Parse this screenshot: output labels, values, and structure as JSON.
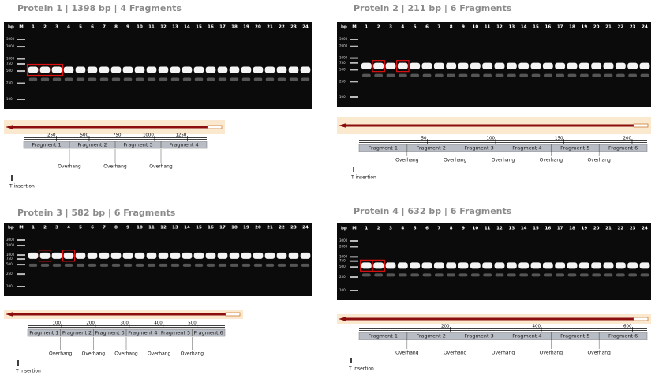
{
  "panels": [
    {
      "title": "Protein 1 | 1398 bp | 4 Fragments",
      "axis_label": "bp",
      "lanes": [
        "M",
        "1",
        "2",
        "3",
        "4",
        "5",
        "6",
        "7",
        "8",
        "9",
        "10",
        "11",
        "12",
        "13",
        "14",
        "15",
        "16",
        "17",
        "18",
        "19",
        "20",
        "21",
        "22",
        "23",
        "24"
      ],
      "ladder": [
        3000,
        2000,
        1000,
        750,
        500,
        250,
        100
      ],
      "highlighted": [
        1,
        2,
        3
      ],
      "xlim": [
        0,
        1398
      ],
      "xticks": [
        250,
        500,
        750,
        1000,
        1250
      ],
      "fragments": [
        "Fragment 1",
        "Fragment 2",
        "Fragment 3",
        "Fragment 4"
      ],
      "overhangs": [
        "Overhang",
        "Overhang",
        "Overhang"
      ],
      "insertion": "T insertion"
    },
    {
      "title": "Protein 2 | 211 bp | 6 Fragments",
      "axis_label": "bp",
      "lanes": [
        "M",
        "1",
        "2",
        "3",
        "4",
        "5",
        "6",
        "7",
        "8",
        "9",
        "10",
        "11",
        "12",
        "13",
        "14",
        "15",
        "16",
        "17",
        "18",
        "19",
        "20",
        "21",
        "22",
        "23",
        "24"
      ],
      "ladder": [
        3000,
        2000,
        1000,
        750,
        500,
        250,
        100
      ],
      "highlighted": [
        2,
        4
      ],
      "xlim": [
        0,
        211
      ],
      "xticks": [
        50,
        100,
        150,
        200
      ],
      "fragments": [
        "Fragment 1",
        "Fragment 2",
        "Fragment 3",
        "Fragment 4",
        "Fragment 5",
        "Fragment 6"
      ],
      "overhangs": [
        "Overhang",
        "Overhang",
        "Overhang",
        "Overhang",
        "Overhang"
      ],
      "insertion": "T insertion"
    },
    {
      "title": "Protein 3 | 582 bp | 6 Fragments",
      "axis_label": "bp",
      "lanes": [
        "M",
        "1",
        "2",
        "3",
        "4",
        "5",
        "6",
        "7",
        "8",
        "9",
        "10",
        "11",
        "12",
        "13",
        "14",
        "15",
        "16",
        "17",
        "18",
        "19",
        "20",
        "21",
        "22",
        "23",
        "24"
      ],
      "ladder": [
        3000,
        2000,
        1000,
        750,
        500,
        250,
        100
      ],
      "highlighted": [
        2,
        4
      ],
      "xlim": [
        0,
        582
      ],
      "xticks": [
        100,
        200,
        300,
        400,
        500
      ],
      "fragments": [
        "Fragment 1",
        "Fragment 2",
        "Fragment 3",
        "Fragment 4",
        "Fragment 5",
        "Fragment 6"
      ],
      "overhangs": [
        "Overhang",
        "Overhang",
        "Overhang",
        "Overhang",
        "Overhang"
      ],
      "insertion": "T insertion"
    },
    {
      "title": "Protein 4 | 632 bp | 6 Fragments",
      "axis_label": "bp",
      "lanes": [
        "M",
        "1",
        "2",
        "3",
        "4",
        "5",
        "6",
        "7",
        "8",
        "9",
        "10",
        "11",
        "12",
        "13",
        "14",
        "15",
        "16",
        "17",
        "18",
        "19",
        "20",
        "21",
        "22",
        "23",
        "24"
      ],
      "ladder": [
        3000,
        2000,
        1000,
        750,
        500,
        250,
        100
      ],
      "highlighted": [
        1,
        2
      ],
      "xlim": [
        0,
        632
      ],
      "xticks": [
        200,
        400,
        600
      ],
      "fragments": [
        "Fragment 1",
        "Fragment 2",
        "Fragment 3",
        "Fragment 4",
        "Fragment 5",
        "Fragment 6"
      ],
      "overhangs": [
        "Overhang",
        "Overhang",
        "Overhang",
        "Overhang",
        "Overhang"
      ],
      "insertion": "T insertion"
    }
  ]
}
